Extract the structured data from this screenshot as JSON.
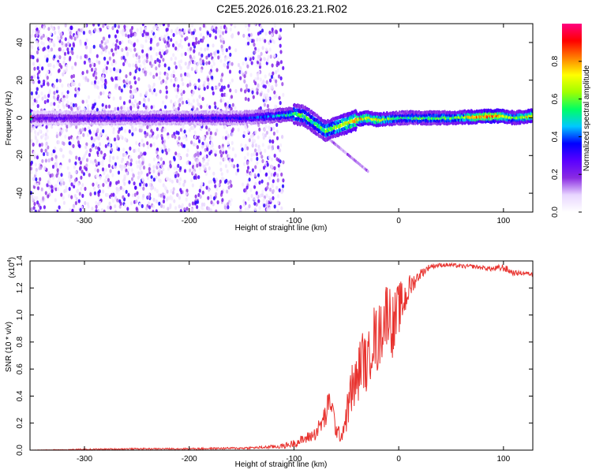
{
  "title": "C2E5.2026.016.23.21.R02",
  "chart_data": [
    {
      "type": "heatmap",
      "xlabel": "Height of straight line (km)",
      "ylabel": "Frequency (Hz)",
      "xlim": [
        -352,
        128
      ],
      "ylim": [
        -50,
        50
      ],
      "xticks": [
        -300,
        -200,
        -100,
        0,
        100
      ],
      "xtick_labels": [
        "-300",
        "-200",
        "-100",
        "0",
        "100"
      ],
      "yticks": [
        40,
        20,
        0,
        -20,
        -40
      ],
      "ytick_labels": [
        "40",
        "20",
        "0",
        "-20",
        "-40"
      ],
      "colorbar": {
        "label": "Normalized spectral amplitude",
        "range": [
          0,
          1
        ],
        "ticks": [
          0.0,
          0.2,
          0.4,
          0.6,
          0.8
        ],
        "tick_labels": [
          "0.0",
          "0.2",
          "0.4",
          "0.6",
          "0.8"
        ],
        "colors": [
          "#ffffff",
          "#e8d6ff",
          "#8a2be2",
          "#5a00ff",
          "#0000ff",
          "#00c8ff",
          "#00ff64",
          "#a0ff00",
          "#ffff00",
          "#ff8000",
          "#ff0000",
          "#ff0080"
        ]
      },
      "noise_region_km": [
        -352,
        -120
      ],
      "signal_centerline": [
        {
          "x": -350,
          "y": 0
        },
        {
          "x": -300,
          "y": 0
        },
        {
          "x": -250,
          "y": 0
        },
        {
          "x": -200,
          "y": 0
        },
        {
          "x": -150,
          "y": 0
        },
        {
          "x": -120,
          "y": 1
        },
        {
          "x": -100,
          "y": 2
        },
        {
          "x": -90,
          "y": 1
        },
        {
          "x": -80,
          "y": -3
        },
        {
          "x": -70,
          "y": -7
        },
        {
          "x": -60,
          "y": -5
        },
        {
          "x": -50,
          "y": -3
        },
        {
          "x": -40,
          "y": -1
        },
        {
          "x": -30,
          "y": 0
        },
        {
          "x": -20,
          "y": -1
        },
        {
          "x": 0,
          "y": 0
        },
        {
          "x": 50,
          "y": 0
        },
        {
          "x": 90,
          "y": 1
        },
        {
          "x": 100,
          "y": 1
        },
        {
          "x": 110,
          "y": 0
        },
        {
          "x": 128,
          "y": 1
        }
      ],
      "signal_amplitude": [
        {
          "x": -350,
          "a": 0.25
        },
        {
          "x": -300,
          "a": 0.3
        },
        {
          "x": -200,
          "a": 0.32
        },
        {
          "x": -150,
          "a": 0.35
        },
        {
          "x": -120,
          "a": 0.45
        },
        {
          "x": -100,
          "a": 0.6
        },
        {
          "x": -80,
          "a": 0.55
        },
        {
          "x": -60,
          "a": 0.65
        },
        {
          "x": -40,
          "a": 0.8
        },
        {
          "x": -20,
          "a": 0.75
        },
        {
          "x": 0,
          "a": 0.55
        },
        {
          "x": 50,
          "a": 0.6
        },
        {
          "x": 90,
          "a": 0.95
        },
        {
          "x": 110,
          "a": 0.6
        },
        {
          "x": 128,
          "a": 0.85
        }
      ]
    },
    {
      "type": "line",
      "xlabel": "Height of straight line (km)",
      "ylabel": "SNR (10 * v/v)",
      "y_multiplier": "(x10",
      "y_multiplier_exp": "4",
      "xlim": [
        -352,
        128
      ],
      "ylim": [
        0,
        1.4
      ],
      "xticks": [
        -300,
        -200,
        -100,
        0,
        100
      ],
      "xtick_labels": [
        "-300",
        "-200",
        "-100",
        "0",
        "100"
      ],
      "yticks": [
        0.0,
        0.2,
        0.4,
        0.6,
        0.8,
        1.0,
        1.2,
        1.4
      ],
      "ytick_labels": [
        "0.0",
        "0.2",
        "0.4",
        "0.6",
        "0.8",
        "1.0",
        "1.2",
        "1.4"
      ],
      "series": [
        {
          "name": "SNR",
          "color": "#e8322e",
          "x": [
            -352,
            -300,
            -250,
            -200,
            -150,
            -130,
            -110,
            -100,
            -90,
            -80,
            -75,
            -70,
            -65,
            -60,
            -55,
            -50,
            -45,
            -40,
            -35,
            -30,
            -25,
            -20,
            -15,
            -10,
            -5,
            0,
            5,
            10,
            15,
            20,
            25,
            30,
            40,
            50,
            60,
            70,
            80,
            90,
            100,
            110,
            120,
            128
          ],
          "y": [
            0.0,
            0.005,
            0.01,
            0.01,
            0.015,
            0.02,
            0.03,
            0.05,
            0.08,
            0.12,
            0.18,
            0.25,
            0.38,
            0.15,
            0.1,
            0.25,
            0.45,
            0.5,
            0.7,
            0.6,
            0.85,
            0.8,
            0.95,
            1.05,
            0.9,
            1.05,
            1.1,
            1.2,
            1.25,
            1.3,
            1.33,
            1.36,
            1.37,
            1.37,
            1.36,
            1.36,
            1.35,
            1.34,
            1.35,
            1.31,
            1.31,
            1.3
          ],
          "noise": [
            0.0,
            0.005,
            0.005,
            0.006,
            0.008,
            0.01,
            0.02,
            0.03,
            0.04,
            0.05,
            0.07,
            0.1,
            0.12,
            0.06,
            0.05,
            0.12,
            0.2,
            0.2,
            0.22,
            0.2,
            0.25,
            0.25,
            0.25,
            0.25,
            0.25,
            0.2,
            0.15,
            0.1,
            0.06,
            0.04,
            0.03,
            0.02,
            0.015,
            0.015,
            0.015,
            0.015,
            0.015,
            0.02,
            0.03,
            0.02,
            0.015,
            0.015
          ]
        }
      ]
    }
  ]
}
